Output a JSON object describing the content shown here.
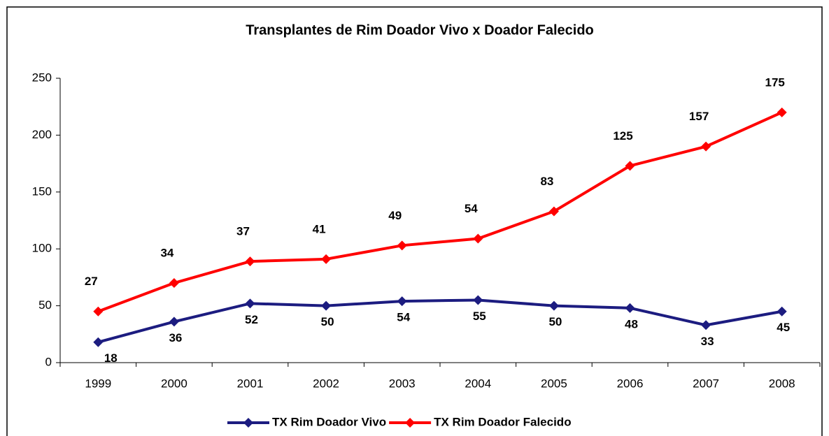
{
  "chart_data": {
    "type": "line",
    "stacked": true,
    "title": "Transplantes de Rim Doador Vivo x Doador Falecido",
    "categories": [
      "1999",
      "2000",
      "2001",
      "2002",
      "2003",
      "2004",
      "2005",
      "2006",
      "2007",
      "2008"
    ],
    "series": [
      {
        "name": "TX Rim Doador Vivo",
        "color": "#1c1c80",
        "values": [
          18,
          36,
          52,
          50,
          54,
          55,
          50,
          48,
          33,
          45
        ]
      },
      {
        "name": "TX Rim Doador Falecido",
        "color": "#ff0000",
        "values": [
          27,
          34,
          37,
          41,
          49,
          54,
          83,
          125,
          157,
          175
        ]
      }
    ],
    "ylim": [
      0,
      250
    ],
    "yticks": [
      0,
      50,
      100,
      150,
      200,
      250
    ],
    "grid": false,
    "legend": "bottom"
  }
}
